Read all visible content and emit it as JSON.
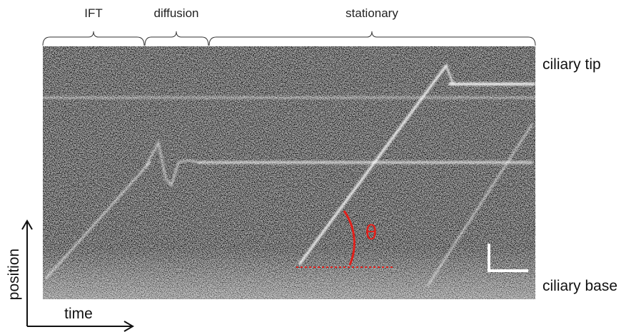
{
  "phases": [
    "IFT",
    "diffusion",
    "stationary"
  ],
  "side_labels": {
    "top": "ciliary tip",
    "bottom": "ciliary base"
  },
  "axes": {
    "y": "position",
    "x": "time"
  },
  "angle_label": "θ"
}
